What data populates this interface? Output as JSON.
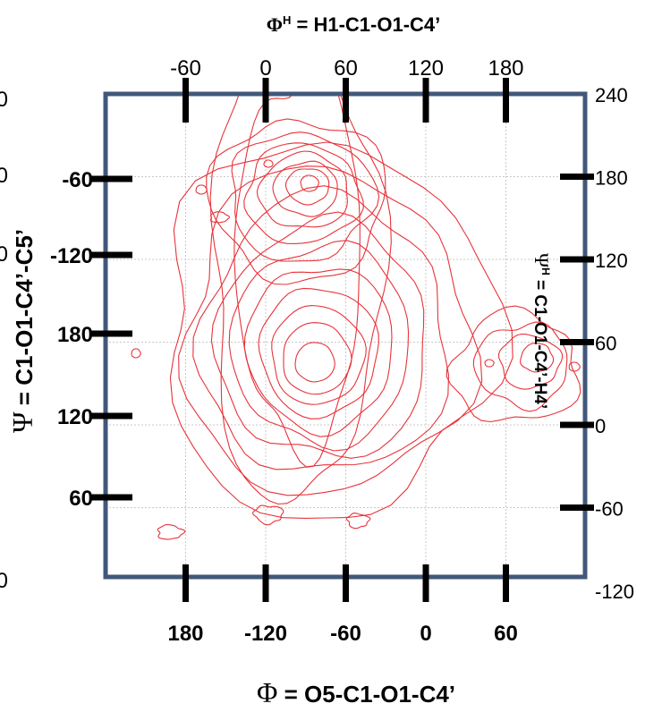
{
  "chart_data": {
    "type": "contour",
    "title_top": "H1-C1-O1-C4’",
    "title_top_symbol": "Φ",
    "title_top_sup": "H",
    "xlabel_bottom": "O5-C1-O1-C4’",
    "xlabel_bottom_symbol": "Φ",
    "ylabel_left": "C1-O1-C4’-C5’",
    "ylabel_left_symbol": "Ψ",
    "ylabel_right": "C1-O1-C4’-H4’",
    "ylabel_right_symbol": "Ψ",
    "ylabel_right_sup": "H",
    "x_bottom_ticks": [
      "180",
      "-120",
      "-60",
      "0",
      "60"
    ],
    "x_bottom_values": [
      180,
      -120,
      -60,
      0,
      60
    ],
    "x_top_ticks": [
      "-60",
      "0",
      "60",
      "120",
      "180"
    ],
    "x_top_values": [
      -60,
      0,
      60,
      120,
      180
    ],
    "y_left_ticks": [
      "-60",
      "-120",
      "180",
      "120",
      "60"
    ],
    "y_left_values": [
      -60,
      -120,
      180,
      120,
      60
    ],
    "y_left_clipped_ticks": [
      "0",
      "0",
      "0",
      "0"
    ],
    "y_right_ticks": [
      "240",
      "180",
      "120",
      "60",
      "0",
      "-60",
      "-120"
    ],
    "y_right_values": [
      240,
      180,
      120,
      60,
      0,
      -60,
      -120
    ],
    "grid": true,
    "contour_color": "#e8333a",
    "frame_color": "#41587a",
    "contour_features": [
      {
        "name": "upper-minimum",
        "x_bottom": -75,
        "y_left": -55,
        "levels": 7
      },
      {
        "name": "global-minimum",
        "x_bottom": -80,
        "y_left": 150,
        "levels": 10
      },
      {
        "name": "right-shoulder",
        "x_bottom": 60,
        "y_left": 150,
        "levels": 4
      }
    ]
  }
}
